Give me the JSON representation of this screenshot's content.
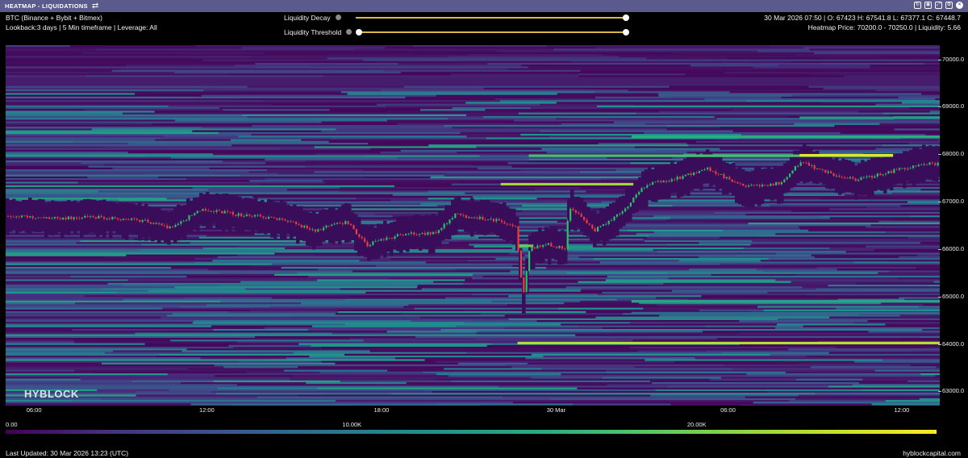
{
  "header": {
    "title": "HEATMAP - LIQUIDATIONS",
    "window_icons": [
      "refresh-icon",
      "camera-icon",
      "fullscreen-icon",
      "settings-icon",
      "close-icon"
    ]
  },
  "info": {
    "pair": "BTC (Binance + Bybit + Bitmex)",
    "params": "Lookback:3 days | 5 Min timeframe | Leverage: All",
    "ohlc": "30 Mar 2026 07:50 | O: 67423 H: 67541.8 L: 67377.1 C: 67448.7",
    "heatmap": "Heatmap Price: 70200.0 - 70250.0 | Liquidity: 5.66"
  },
  "controls": {
    "decay_label": "Liquidity Decay",
    "threshold_label": "Liquidity Threshold",
    "decay_value": 1.0,
    "threshold_value": [
      0.0,
      1.0
    ]
  },
  "chart_data": {
    "type": "heatmap",
    "title": "HEATMAP - LIQUIDATIONS",
    "y_range": [
      62700,
      70300
    ],
    "y_ticks": [
      "70000.0",
      "69000.0",
      "68000.0",
      "67000.0",
      "66000.0",
      "65000.0",
      "64000.0",
      "63000.0"
    ],
    "x_ticks": [
      {
        "label": "06:00",
        "frac": 0.03
      },
      {
        "label": "12:00",
        "frac": 0.215
      },
      {
        "label": "18:00",
        "frac": 0.402
      },
      {
        "label": "30 Mar",
        "frac": 0.587
      },
      {
        "label": "06:00",
        "frac": 0.773
      },
      {
        "label": "12:00",
        "frac": 0.959
      }
    ],
    "colorscale": [
      "#440154",
      "#472d7b",
      "#3b528b",
      "#2c728e",
      "#21918c",
      "#27ad81",
      "#5cc863",
      "#aadc32",
      "#fde725"
    ],
    "colorbar_labels": [
      "0.00",
      "10.00K",
      "20.00K"
    ],
    "colorbar_max": 27000,
    "price_anchors": [
      {
        "f": 0.0,
        "p": 66700
      },
      {
        "f": 0.055,
        "p": 66650
      },
      {
        "f": 0.1,
        "p": 66680
      },
      {
        "f": 0.15,
        "p": 66590
      },
      {
        "f": 0.175,
        "p": 66450
      },
      {
        "f": 0.21,
        "p": 66850
      },
      {
        "f": 0.25,
        "p": 66720
      },
      {
        "f": 0.29,
        "p": 66650
      },
      {
        "f": 0.33,
        "p": 66400
      },
      {
        "f": 0.365,
        "p": 66580
      },
      {
        "f": 0.385,
        "p": 66080
      },
      {
        "f": 0.42,
        "p": 66300
      },
      {
        "f": 0.46,
        "p": 66350
      },
      {
        "f": 0.48,
        "p": 66720
      },
      {
        "f": 0.53,
        "p": 66600
      },
      {
        "f": 0.545,
        "p": 66450
      },
      {
        "f": 0.553,
        "p": 65000
      },
      {
        "f": 0.56,
        "p": 66000
      },
      {
        "f": 0.58,
        "p": 66100
      },
      {
        "f": 0.598,
        "p": 66000
      },
      {
        "f": 0.602,
        "p": 66900
      },
      {
        "f": 0.63,
        "p": 66400
      },
      {
        "f": 0.66,
        "p": 66800
      },
      {
        "f": 0.672,
        "p": 67100
      },
      {
        "f": 0.685,
        "p": 67350
      },
      {
        "f": 0.72,
        "p": 67500
      },
      {
        "f": 0.75,
        "p": 67700
      },
      {
        "f": 0.79,
        "p": 67300
      },
      {
        "f": 0.83,
        "p": 67400
      },
      {
        "f": 0.85,
        "p": 67850
      },
      {
        "f": 0.88,
        "p": 67600
      },
      {
        "f": 0.91,
        "p": 67450
      },
      {
        "f": 0.95,
        "p": 67650
      },
      {
        "f": 0.98,
        "p": 67800
      },
      {
        "f": 1.0,
        "p": 67800
      }
    ],
    "strong_levels": [
      {
        "price": 67370,
        "from": 0.53,
        "to": 0.672,
        "value": 23000
      },
      {
        "price": 67970,
        "from": 0.56,
        "to": 0.95,
        "value": 19000
      },
      {
        "price": 68370,
        "from": 0.67,
        "to": 1.0,
        "value": 17000
      },
      {
        "price": 67980,
        "from": 0.85,
        "to": 0.95,
        "value": 26000
      },
      {
        "price": 64900,
        "from": 0.67,
        "to": 1.0,
        "value": 16000
      },
      {
        "price": 64650,
        "from": 0.67,
        "to": 1.0,
        "value": 9000
      },
      {
        "price": 64020,
        "from": 0.548,
        "to": 1.0,
        "value": 24000
      },
      {
        "price": 66070,
        "from": 0.548,
        "to": 0.565,
        "value": 21000
      },
      {
        "price": 68770,
        "from": 0.85,
        "to": 1.0,
        "value": 15000
      }
    ]
  },
  "watermark": "HYBLOCK",
  "footer": {
    "updated": "Last Updated: 30 Mar 2026 13:23 (UTC)",
    "site": "hyblockcapital.com"
  }
}
